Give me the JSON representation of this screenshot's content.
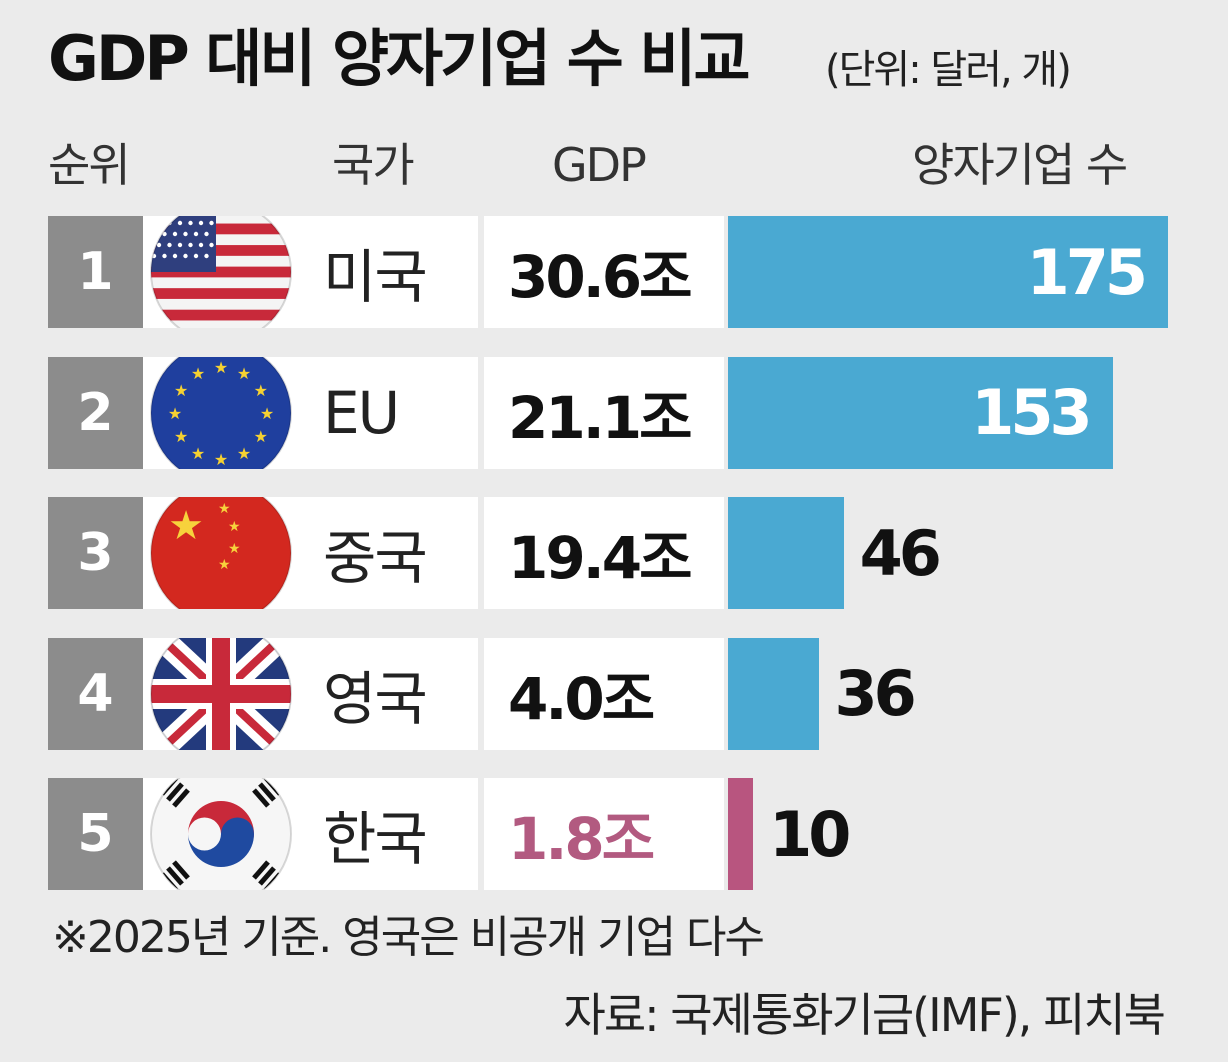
{
  "chart_data": {
    "type": "table",
    "title": "GDP 대비 양자기업 수 비교",
    "unit_note": "(단위: 달러, 개)",
    "columns": [
      "순위",
      "국가",
      "GDP",
      "양자기업 수"
    ],
    "rows": [
      {
        "rank": "1",
        "country": "미국",
        "gdp": "30.6조",
        "count": 175,
        "count_label": "175",
        "flag": "us-flag-icon",
        "highlight": false
      },
      {
        "rank": "2",
        "country": "EU",
        "gdp": "21.1조",
        "count": 153,
        "count_label": "153",
        "flag": "eu-flag-icon",
        "highlight": false
      },
      {
        "rank": "3",
        "country": "중국",
        "gdp": "19.4조",
        "count": 46,
        "count_label": "46",
        "flag": "china-flag-icon",
        "highlight": false
      },
      {
        "rank": "4",
        "country": "영국",
        "gdp": "4.0조",
        "count": 36,
        "count_label": "36",
        "flag": "uk-flag-icon",
        "highlight": false
      },
      {
        "rank": "5",
        "country": "한국",
        "gdp": "1.8조",
        "count": 10,
        "count_label": "10",
        "flag": "korea-flag-icon",
        "highlight": true
      }
    ],
    "xlim": [
      0,
      175
    ],
    "note": "※2025년 기준. 영국은 비공개 기업 다수",
    "source": "자료: 국제통화기금(IMF), 피치북"
  },
  "colors": {
    "background": "#ebebeb",
    "bar": "#4aa9d2",
    "bar_highlight": "#b8557f",
    "rank_bg": "#8c8c8c",
    "highlight_text": "#b25a80"
  }
}
